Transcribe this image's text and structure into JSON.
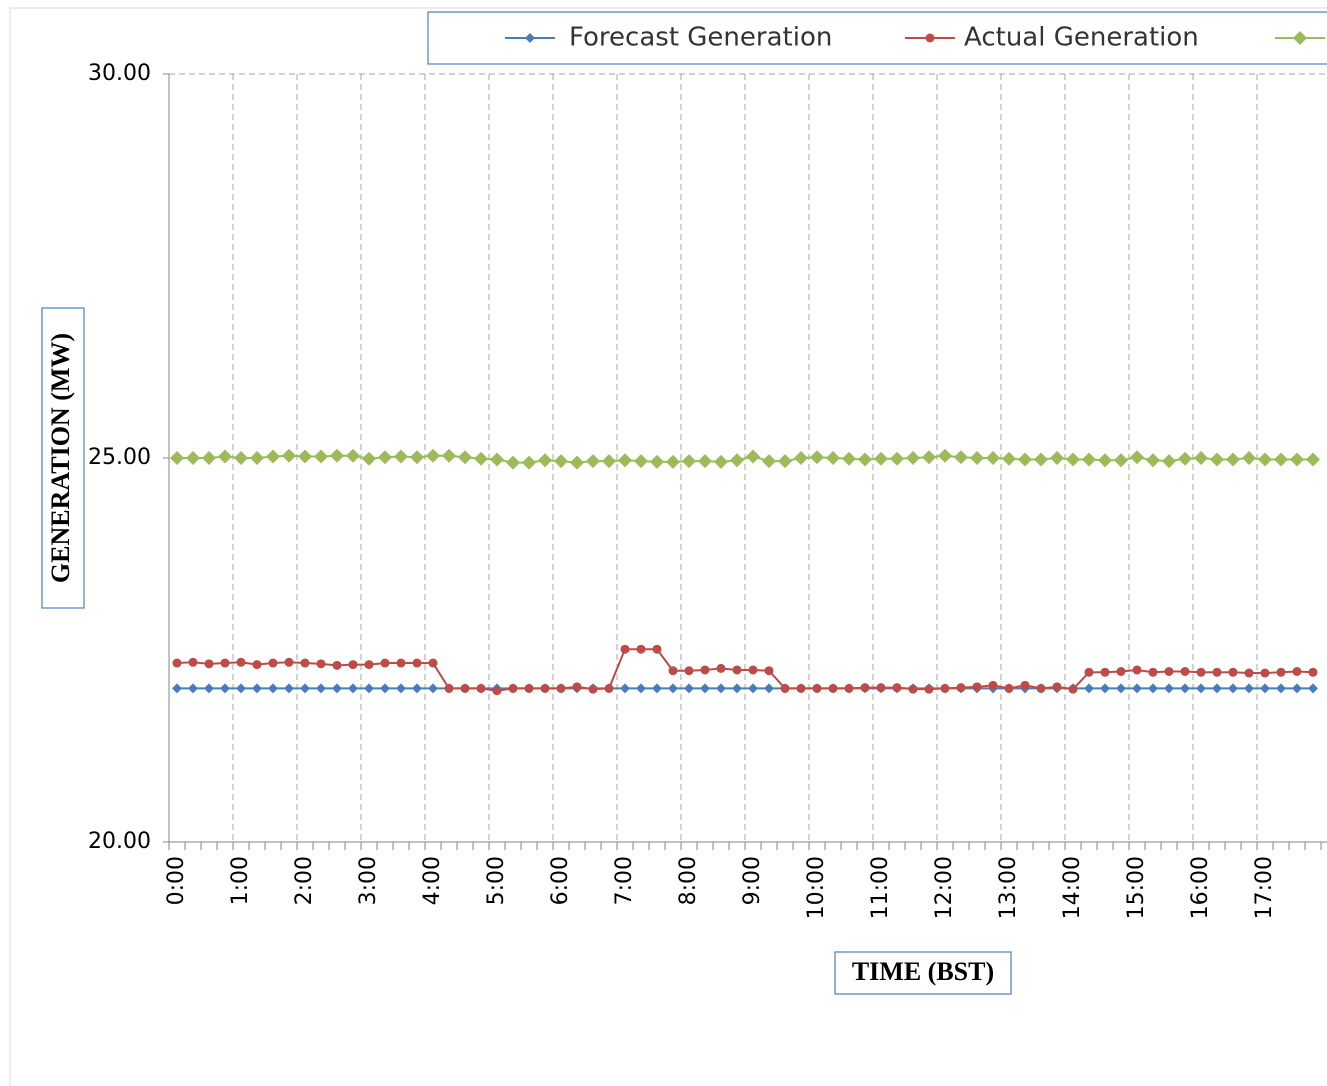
{
  "chart_data": {
    "type": "line",
    "x_label": "TIME (BST)",
    "y_label": "GENERATION (MW)",
    "categories": [
      "0:00",
      null,
      null,
      null,
      "1:00",
      null,
      null,
      null,
      "2:00",
      null,
      null,
      null,
      "3:00",
      null,
      null,
      null,
      "4:00",
      null,
      null,
      null,
      "5:00",
      null,
      null,
      null,
      "6:00",
      null,
      null,
      null,
      "7:00",
      null,
      null,
      null,
      "8:00",
      null,
      null,
      null,
      "9:00",
      null,
      null,
      null,
      "10:00",
      null,
      null,
      null,
      "11:00",
      null,
      null,
      null,
      "12:00",
      null,
      null,
      null,
      "13:00",
      null,
      null,
      null,
      "14:00",
      null,
      null,
      null,
      "15:00",
      null,
      null,
      null,
      "16:00",
      null,
      null,
      null,
      "17:00",
      null,
      null,
      null
    ],
    "ylim": [
      20,
      30
    ],
    "yticks": [
      {
        "value": 20,
        "label": "20.00"
      },
      {
        "value": 25,
        "label": "25.00"
      },
      {
        "value": 30,
        "label": "30.00"
      }
    ],
    "grid": true,
    "legend": "top",
    "series": [
      {
        "name": "Forecast Generation",
        "color": "#4a7ebb",
        "marker": "diamond",
        "values": [
          22,
          22,
          22,
          22,
          22,
          22,
          22,
          22,
          22,
          22,
          22,
          22,
          22,
          22,
          22,
          22,
          22,
          22,
          22,
          22,
          22,
          22,
          22,
          22,
          22,
          22,
          22,
          22,
          22,
          22,
          22,
          22,
          22,
          22,
          22,
          22,
          22,
          22,
          22,
          22,
          22,
          22,
          22,
          22,
          22,
          22,
          22,
          22,
          22,
          22,
          22,
          22,
          22,
          22,
          22,
          22,
          22,
          22,
          22,
          22,
          22,
          22,
          22,
          22,
          22,
          22,
          22,
          22,
          22,
          22,
          22,
          22
        ]
      },
      {
        "name": "Actual Generation",
        "color": "#be4b48",
        "marker": "circle",
        "values": [
          22.33,
          22.34,
          22.32,
          22.33,
          22.34,
          22.31,
          22.33,
          22.34,
          22.33,
          22.32,
          22.3,
          22.31,
          22.31,
          22.33,
          22.33,
          22.33,
          22.33,
          22.0,
          22.0,
          22.0,
          21.97,
          22.0,
          22.0,
          22.0,
          22.0,
          22.02,
          21.99,
          22.0,
          22.51,
          22.51,
          22.51,
          22.23,
          22.23,
          22.24,
          22.26,
          22.24,
          22.24,
          22.23,
          22.0,
          22.0,
          22.0,
          22.0,
          22.0,
          22.01,
          22.01,
          22.01,
          21.99,
          21.99,
          22.0,
          22.01,
          22.02,
          22.04,
          22.0,
          22.04,
          22.0,
          22.02,
          21.99,
          22.21,
          22.21,
          22.22,
          22.24,
          22.21,
          22.22,
          22.22,
          22.21,
          22.21,
          22.21,
          22.2,
          22.2,
          22.21,
          22.22,
          22.21
        ]
      },
      {
        "color": "#9bbb59",
        "marker": "diamond",
        "values": [
          25.0,
          25.0,
          25.0,
          25.02,
          25.0,
          25.0,
          25.02,
          25.03,
          25.02,
          25.02,
          25.03,
          25.03,
          24.99,
          25.01,
          25.02,
          25.01,
          25.03,
          25.03,
          25.01,
          24.99,
          24.98,
          24.94,
          24.94,
          24.97,
          24.96,
          24.94,
          24.96,
          24.96,
          24.97,
          24.96,
          24.95,
          24.95,
          24.96,
          24.96,
          24.95,
          24.97,
          25.02,
          24.96,
          24.96,
          25.0,
          25.01,
          25.0,
          24.99,
          24.98,
          24.99,
          24.99,
          25.0,
          25.01,
          25.03,
          25.01,
          25.0,
          25.0,
          24.99,
          24.98,
          24.98,
          25.0,
          24.98,
          24.98,
          24.97,
          24.97,
          25.01,
          24.97,
          24.96,
          24.99,
          25.0,
          24.98,
          24.98,
          25.0,
          24.98,
          24.98,
          24.98,
          24.98
        ]
      }
    ]
  }
}
